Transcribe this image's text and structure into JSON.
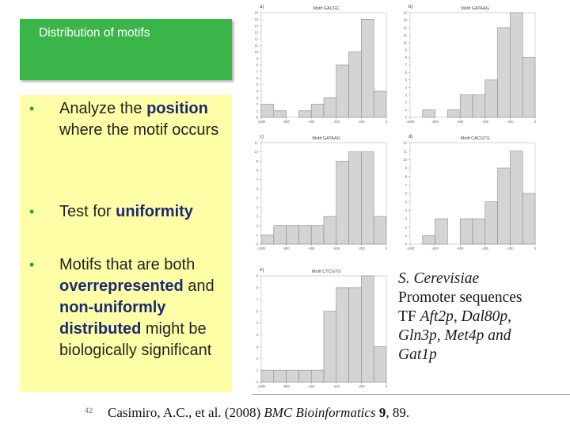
{
  "slide": {
    "title": "Distribution of motifs",
    "number": "42",
    "colors": {
      "title_bg": "#3ab54a",
      "panel_bg": "#ffffa8",
      "bullet": "#2e9e3e",
      "highlight": "#1b2a6e",
      "bars": "#d4d4d4"
    }
  },
  "bullets": [
    {
      "pre": "Analyze the ",
      "hl": "position",
      "post": " where the motif occurs"
    },
    {
      "pre": "Test for ",
      "hl": "uniformity",
      "post": ""
    },
    {
      "pre": "Motifs that are both ",
      "hl": "overrepresented",
      "mid": " and ",
      "hl2": "non-uniformly distributed",
      "post": " might be biologically significant"
    }
  ],
  "caption": {
    "organism": "S. Cerevisiae",
    "line2": "Promoter sequences",
    "tf_prefix": "TF ",
    "tf_list_1": "Aft2p, Dal80p,",
    "tf_list_2": "Gln3p, Met4p and",
    "tf_list_3": "Gat1p"
  },
  "citation": {
    "authors": "Casimiro, A.C., et al. (2008) ",
    "journal": "BMC Bioinformatics",
    "volume": " 9",
    "pages": ", 89."
  },
  "chart_data": [
    {
      "type": "bar",
      "panel": "a)",
      "title": "Motif GACGC",
      "x_ticks": [
        "-1000",
        "-800",
        "-600",
        "-400",
        "-200",
        "0"
      ],
      "y_ticks": [
        "0",
        "1",
        "2",
        "3",
        "4",
        "5",
        "6",
        "7",
        "8",
        "9",
        "10",
        "11",
        "12",
        "13",
        "14",
        "15",
        "16"
      ],
      "ylim": [
        0,
        16
      ],
      "bin_edges": [
        -1000,
        -900,
        -800,
        -700,
        -600,
        -500,
        -400,
        -300,
        -200,
        -100,
        0
      ],
      "values": [
        2,
        1,
        0,
        1,
        2,
        3,
        8,
        10,
        15,
        4
      ]
    },
    {
      "type": "bar",
      "panel": "b)",
      "title": "Motif GATAAG",
      "x_ticks": [
        "-1000",
        "-800",
        "-600",
        "-400",
        "-200",
        "0"
      ],
      "y_ticks": [
        "0",
        "1",
        "2",
        "3",
        "4",
        "5",
        "6",
        "7",
        "8",
        "9",
        "10",
        "11",
        "12",
        "13",
        "14"
      ],
      "ylim": [
        0,
        14
      ],
      "bin_edges": [
        -1000,
        -900,
        -800,
        -700,
        -600,
        -500,
        -400,
        -300,
        -200,
        -100,
        0
      ],
      "values": [
        0,
        1,
        0,
        1,
        3,
        3,
        5,
        12,
        14,
        8
      ]
    },
    {
      "type": "bar",
      "panel": "c)",
      "title": "Motif GATAAG",
      "x_ticks": [
        "-1000",
        "-800",
        "-600",
        "-400",
        "-200",
        "0"
      ],
      "y_ticks": [
        "0",
        "1",
        "2",
        "3",
        "4",
        "5",
        "6",
        "7",
        "8",
        "9",
        "10",
        "11"
      ],
      "ylim": [
        0,
        11
      ],
      "bin_edges": [
        -1000,
        -900,
        -800,
        -700,
        -600,
        -500,
        -400,
        -300,
        -200,
        -100,
        0
      ],
      "values": [
        1,
        2,
        2,
        2,
        2,
        3,
        9,
        10,
        10,
        3
      ]
    },
    {
      "type": "bar",
      "panel": "d)",
      "title": "Motif CACGTG",
      "x_ticks": [
        "-1000",
        "-800",
        "-600",
        "-400",
        "-200",
        "0"
      ],
      "y_ticks": [
        "0",
        "1",
        "2",
        "3",
        "4",
        "5",
        "6",
        "7",
        "8",
        "9",
        "10",
        "11",
        "12"
      ],
      "ylim": [
        0,
        12
      ],
      "bin_edges": [
        -1000,
        -900,
        -800,
        -700,
        -600,
        -500,
        -400,
        -300,
        -200,
        -100,
        0
      ],
      "values": [
        0,
        1,
        3,
        0,
        3,
        3,
        5,
        9,
        11,
        6
      ]
    },
    {
      "type": "bar",
      "panel": "e)",
      "title": "Motif CTCGTG",
      "x_ticks": [
        "-1000",
        "-800",
        "-600",
        "-400",
        "-200",
        "0"
      ],
      "y_ticks": [
        "0",
        "1",
        "2",
        "3",
        "4",
        "5",
        "6",
        "7",
        "8",
        "9"
      ],
      "ylim": [
        0,
        9
      ],
      "bin_edges": [
        -1000,
        -900,
        -800,
        -700,
        -600,
        -500,
        -400,
        -300,
        -200,
        -100,
        0
      ],
      "values": [
        1,
        1,
        1,
        1,
        1,
        6,
        8,
        8,
        9,
        3
      ]
    }
  ]
}
